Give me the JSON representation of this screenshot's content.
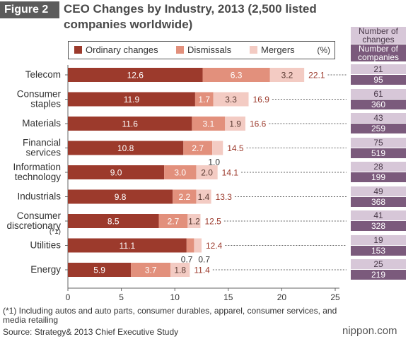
{
  "figure_label": "Figure 2",
  "title": "CEO Changes by Industry, 2013 (2,500 listed companies worldwide)",
  "legend": {
    "ordinary": "Ordinary changes",
    "dismissals": "Dismissals",
    "mergers": "Mergers",
    "unit": "(%)"
  },
  "side_headers": {
    "changes": "Number of changes",
    "companies": "Number of companies"
  },
  "colors": {
    "ordinary": "#9c3a2c",
    "dismissals": "#e2907c",
    "mergers": "#f3cbc3",
    "changes_box": "#d7c7d8",
    "companies_box": "#7b5a7c",
    "total_label": "#9c3a2c"
  },
  "chart_data": {
    "type": "bar",
    "orientation": "horizontal",
    "stacked": true,
    "categories": [
      "Telecom",
      "Consumer staples",
      "Materials",
      "Financial services",
      "Information technology",
      "Industrials",
      "Consumer discretionary",
      "Utilities",
      "Energy"
    ],
    "category_lines": [
      [
        "Telecom"
      ],
      [
        "Consumer",
        "staples"
      ],
      [
        "Materials"
      ],
      [
        "Financial",
        "services"
      ],
      [
        "Information",
        "technology"
      ],
      [
        "Industrials"
      ],
      [
        "Consumer",
        "discretionary"
      ],
      [
        "Utilities"
      ],
      [
        "Energy"
      ]
    ],
    "series": [
      {
        "name": "Ordinary changes",
        "values": [
          12.6,
          11.9,
          11.6,
          10.8,
          9.0,
          9.8,
          8.5,
          11.1,
          5.9
        ]
      },
      {
        "name": "Dismissals",
        "values": [
          6.3,
          1.7,
          3.1,
          2.7,
          3.0,
          2.2,
          2.7,
          0.7,
          3.7
        ]
      },
      {
        "name": "Mergers",
        "values": [
          3.2,
          3.3,
          1.9,
          1.0,
          2.0,
          1.4,
          1.2,
          0.7,
          1.8
        ]
      }
    ],
    "totals": [
      22.1,
      16.9,
      16.6,
      14.5,
      14.1,
      13.3,
      12.5,
      12.4,
      11.4
    ],
    "changes": [
      21,
      61,
      43,
      75,
      28,
      49,
      41,
      19,
      25
    ],
    "companies": [
      95,
      360,
      259,
      519,
      199,
      368,
      328,
      153,
      219
    ],
    "category_note": {
      "index": 6,
      "text": "(*1)"
    },
    "xlim": [
      0,
      25
    ],
    "xticks": [
      0,
      5,
      10,
      15,
      20,
      25
    ],
    "grid": false,
    "legend_position": "top"
  },
  "footnote": "(*1) Including autos and auto parts, consumer durables, apparel, consumer services, and media retailing",
  "source": "Source: Strategy& 2013 Chief Executive Study",
  "brand": "nippon.com"
}
